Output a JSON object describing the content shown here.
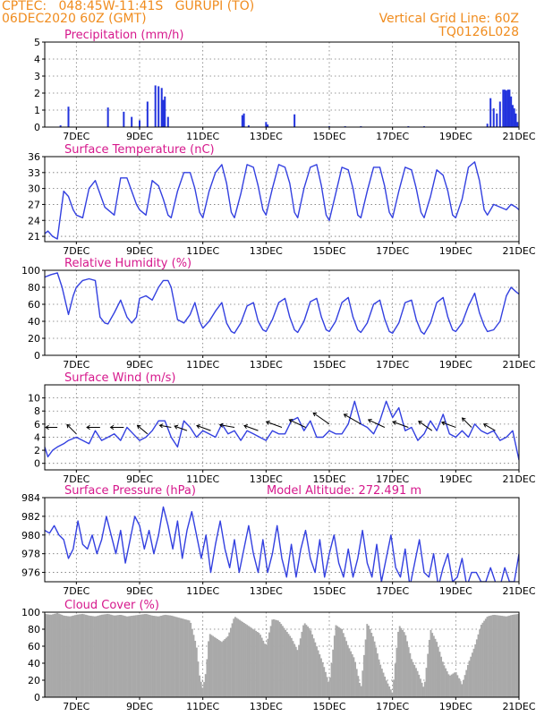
{
  "header": {
    "line1": "CPTEC:   048:45W-11:41S   GURUPI (TO)",
    "line2": "06DEC2020 60Z (GMT)",
    "grid_note": "Vertical Grid Line: 60Z",
    "code": "TQ0126L028"
  },
  "colors": {
    "header": "#f08c1e",
    "title": "#d6188c",
    "line": "#3340e0",
    "bar": "#2233dd",
    "cloud": "#a9a9a9",
    "arrow": "#000000"
  },
  "x_axis": {
    "start_day": 6.0,
    "end_day": 21.0,
    "tick_days": [
      7,
      9,
      11,
      13,
      15,
      17,
      19,
      21
    ],
    "tick_labels": [
      "7DEC",
      "9DEC",
      "11DEC",
      "13DEC",
      "15DEC",
      "17DEC",
      "19DEC",
      "21DEC"
    ]
  },
  "chart_data": [
    {
      "id": "precip",
      "type": "bar",
      "title": "Precipitation (mm/h)",
      "ylim": [
        0,
        5
      ],
      "yticks": [
        0,
        1,
        2,
        3,
        4,
        5
      ],
      "x": [
        6.5,
        6.75,
        8.0,
        8.5,
        8.75,
        9.0,
        9.25,
        9.5,
        9.6,
        9.7,
        9.75,
        9.8,
        9.9,
        12.25,
        12.3,
        12.45,
        13.0,
        13.05,
        13.9,
        15.0,
        15.5,
        16.0,
        17.5,
        18.0,
        20.0,
        20.1,
        20.2,
        20.3,
        20.4,
        20.5,
        20.55,
        20.6,
        20.65,
        20.7,
        20.75,
        20.8,
        20.85,
        20.9,
        20.95
      ],
      "values": [
        0.1,
        1.2,
        1.15,
        0.9,
        0.6,
        0.4,
        1.5,
        2.45,
        2.4,
        2.3,
        1.6,
        1.8,
        0.6,
        0.7,
        0.8,
        0.1,
        0.3,
        0.15,
        0.75,
        0.05,
        0.05,
        0.05,
        0.05,
        0.05,
        0.2,
        1.7,
        1.1,
        0.8,
        1.5,
        2.2,
        2.2,
        2.15,
        2.2,
        2.2,
        1.8,
        1.3,
        1.1,
        0.8,
        0.3
      ]
    },
    {
      "id": "temp",
      "type": "line",
      "title": "Surface Temperature (nC)",
      "ylim": [
        20,
        36
      ],
      "yticks": [
        21,
        24,
        27,
        30,
        33,
        36
      ],
      "x": [
        6.0,
        6.1,
        6.25,
        6.4,
        6.6,
        6.75,
        6.9,
        7.0,
        7.2,
        7.4,
        7.6,
        7.75,
        7.9,
        8.0,
        8.2,
        8.4,
        8.6,
        8.75,
        8.9,
        9.0,
        9.2,
        9.4,
        9.6,
        9.75,
        9.9,
        10.0,
        10.2,
        10.4,
        10.6,
        10.75,
        10.9,
        11.0,
        11.2,
        11.4,
        11.6,
        11.75,
        11.9,
        12.0,
        12.2,
        12.4,
        12.6,
        12.75,
        12.9,
        13.0,
        13.2,
        13.4,
        13.6,
        13.75,
        13.9,
        14.0,
        14.2,
        14.4,
        14.6,
        14.75,
        14.9,
        15.0,
        15.2,
        15.4,
        15.6,
        15.75,
        15.9,
        16.0,
        16.2,
        16.4,
        16.6,
        16.75,
        16.9,
        17.0,
        17.2,
        17.4,
        17.6,
        17.75,
        17.9,
        18.0,
        18.2,
        18.4,
        18.6,
        18.75,
        18.9,
        19.0,
        19.2,
        19.4,
        19.6,
        19.75,
        19.9,
        20.0,
        20.2,
        20.4,
        20.6,
        20.75,
        20.9,
        21.0
      ],
      "values": [
        21.5,
        22.0,
        21.0,
        20.5,
        29.5,
        28.5,
        26.0,
        25.0,
        24.5,
        30.0,
        31.5,
        29.0,
        26.5,
        26.0,
        25.0,
        32.0,
        32.0,
        29.5,
        27.0,
        26.0,
        25.0,
        31.5,
        30.5,
        28.0,
        25.0,
        24.5,
        29.5,
        33.0,
        33.0,
        30.0,
        25.5,
        24.5,
        29.5,
        33.0,
        34.5,
        31.0,
        25.5,
        24.5,
        29.0,
        34.5,
        34.0,
        30.5,
        26.0,
        25.0,
        30.0,
        34.5,
        34.0,
        31.0,
        25.5,
        24.5,
        30.0,
        34.0,
        34.5,
        30.5,
        25.0,
        24.0,
        29.0,
        34.0,
        33.5,
        30.0,
        25.0,
        24.5,
        29.5,
        34.0,
        34.0,
        30.5,
        25.5,
        24.5,
        29.5,
        34.0,
        33.5,
        30.0,
        25.5,
        24.5,
        28.5,
        33.5,
        32.5,
        29.5,
        25.0,
        24.5,
        28.0,
        34.0,
        35.0,
        31.5,
        26.0,
        25.0,
        27.0,
        26.5,
        26.0,
        27.0,
        26.5,
        26.0
      ]
    },
    {
      "id": "rh",
      "type": "line",
      "title": "Relative Humidity (%)",
      "ylim": [
        0,
        100
      ],
      "yticks": [
        0,
        20,
        40,
        60,
        80,
        100
      ],
      "x": [
        6.0,
        6.2,
        6.4,
        6.55,
        6.75,
        6.9,
        7.0,
        7.2,
        7.4,
        7.6,
        7.75,
        7.9,
        8.0,
        8.2,
        8.4,
        8.6,
        8.75,
        8.9,
        9.0,
        9.2,
        9.4,
        9.6,
        9.75,
        9.9,
        10.0,
        10.2,
        10.4,
        10.6,
        10.75,
        10.9,
        11.0,
        11.2,
        11.4,
        11.6,
        11.75,
        11.9,
        12.0,
        12.2,
        12.4,
        12.6,
        12.75,
        12.9,
        13.0,
        13.2,
        13.4,
        13.6,
        13.75,
        13.9,
        14.0,
        14.2,
        14.4,
        14.6,
        14.75,
        14.9,
        15.0,
        15.2,
        15.4,
        15.6,
        15.75,
        15.9,
        16.0,
        16.2,
        16.4,
        16.6,
        16.75,
        16.9,
        17.0,
        17.2,
        17.4,
        17.6,
        17.75,
        17.9,
        18.0,
        18.2,
        18.4,
        18.6,
        18.75,
        18.9,
        19.0,
        19.2,
        19.4,
        19.6,
        19.75,
        19.9,
        20.0,
        20.2,
        20.4,
        20.6,
        20.75,
        20.9,
        21.0
      ],
      "values": [
        92,
        95,
        97,
        80,
        48,
        70,
        80,
        88,
        90,
        88,
        45,
        38,
        37,
        50,
        65,
        45,
        38,
        45,
        67,
        70,
        65,
        80,
        88,
        88,
        80,
        42,
        38,
        48,
        62,
        40,
        32,
        40,
        52,
        62,
        38,
        28,
        26,
        38,
        58,
        62,
        40,
        30,
        28,
        42,
        62,
        67,
        45,
        30,
        27,
        40,
        63,
        67,
        45,
        30,
        28,
        40,
        62,
        68,
        45,
        30,
        27,
        38,
        60,
        65,
        43,
        28,
        26,
        38,
        62,
        65,
        42,
        28,
        25,
        38,
        62,
        68,
        45,
        30,
        28,
        38,
        58,
        73,
        50,
        35,
        28,
        30,
        40,
        70,
        80,
        75,
        72
      ]
    },
    {
      "id": "wind",
      "type": "line",
      "title": "Surface Wind (m/s)",
      "ylim": [
        -1,
        12
      ],
      "yticks": [
        0,
        2,
        4,
        6,
        8,
        10
      ],
      "x": [
        6.0,
        6.1,
        6.25,
        6.4,
        6.6,
        6.75,
        7.0,
        7.2,
        7.4,
        7.6,
        7.8,
        8.0,
        8.2,
        8.4,
        8.6,
        8.8,
        9.0,
        9.2,
        9.4,
        9.6,
        9.8,
        10.0,
        10.2,
        10.4,
        10.6,
        10.8,
        11.0,
        11.2,
        11.4,
        11.6,
        11.8,
        12.0,
        12.2,
        12.4,
        12.6,
        12.8,
        13.0,
        13.2,
        13.4,
        13.6,
        13.8,
        14.0,
        14.2,
        14.4,
        14.6,
        14.8,
        15.0,
        15.2,
        15.4,
        15.6,
        15.8,
        16.0,
        16.2,
        16.4,
        16.6,
        16.8,
        17.0,
        17.2,
        17.4,
        17.6,
        17.8,
        18.0,
        18.2,
        18.4,
        18.6,
        18.8,
        19.0,
        19.2,
        19.4,
        19.6,
        19.8,
        20.0,
        20.2,
        20.4,
        20.6,
        20.8,
        21.0
      ],
      "values": [
        2.5,
        1.0,
        2.0,
        2.5,
        3.0,
        3.5,
        4.0,
        3.5,
        3.0,
        5.0,
        3.5,
        4.0,
        4.5,
        3.5,
        5.5,
        4.5,
        3.5,
        4.0,
        5.0,
        6.5,
        6.5,
        4.0,
        2.5,
        6.5,
        5.5,
        4.0,
        5.0,
        4.5,
        4.0,
        6.0,
        4.5,
        5.0,
        3.5,
        5.0,
        4.5,
        4.0,
        3.5,
        5.0,
        4.5,
        4.5,
        6.5,
        7.0,
        5.0,
        6.5,
        4.0,
        4.0,
        5.0,
        4.5,
        4.5,
        6.0,
        9.5,
        6.0,
        5.5,
        4.5,
        6.5,
        9.5,
        7.0,
        8.5,
        5.0,
        5.5,
        3.5,
        4.5,
        6.5,
        5.0,
        7.5,
        4.5,
        4.0,
        5.0,
        4.0,
        6.0,
        5.0,
        4.5,
        5.0,
        3.5,
        4.0,
        5.0,
        0.5
      ],
      "arrows": [
        {
          "x": 6.4,
          "y": 5.5,
          "dir": 180,
          "speed": 2.0
        },
        {
          "x": 7.0,
          "y": 4.5,
          "dir": 225,
          "speed": 2.5
        },
        {
          "x": 7.75,
          "y": 5.5,
          "dir": 180,
          "speed": 2.5
        },
        {
          "x": 8.5,
          "y": 5.5,
          "dir": 180,
          "speed": 2.5
        },
        {
          "x": 9.25,
          "y": 4.5,
          "dir": 220,
          "speed": 2.5
        },
        {
          "x": 10.0,
          "y": 5.5,
          "dir": 190,
          "speed": 2.0
        },
        {
          "x": 10.5,
          "y": 5.0,
          "dir": 200,
          "speed": 2.5
        },
        {
          "x": 11.25,
          "y": 5.0,
          "dir": 200,
          "speed": 3.0
        },
        {
          "x": 12.0,
          "y": 5.5,
          "dir": 190,
          "speed": 3.0
        },
        {
          "x": 12.75,
          "y": 5.0,
          "dir": 200,
          "speed": 3.0
        },
        {
          "x": 13.5,
          "y": 5.5,
          "dir": 200,
          "speed": 3.5
        },
        {
          "x": 14.25,
          "y": 5.5,
          "dir": 205,
          "speed": 4.0
        },
        {
          "x": 15.0,
          "y": 6.0,
          "dir": 215,
          "speed": 4.5
        },
        {
          "x": 16.0,
          "y": 6.0,
          "dir": 210,
          "speed": 4.5
        },
        {
          "x": 16.75,
          "y": 5.5,
          "dir": 205,
          "speed": 4.0
        },
        {
          "x": 17.5,
          "y": 5.5,
          "dir": 200,
          "speed": 3.5
        },
        {
          "x": 18.25,
          "y": 5.0,
          "dir": 215,
          "speed": 3.5
        },
        {
          "x": 19.0,
          "y": 5.5,
          "dir": 200,
          "speed": 3.0
        },
        {
          "x": 19.5,
          "y": 5.5,
          "dir": 225,
          "speed": 2.5
        },
        {
          "x": 20.25,
          "y": 5.0,
          "dir": 210,
          "speed": 2.5
        }
      ]
    },
    {
      "id": "pressure",
      "type": "line",
      "title": "Surface Pressure (hPa)",
      "subtitle": "Model Altitude: 272.491  m",
      "ylim": [
        975,
        984
      ],
      "yticks": [
        976,
        978,
        980,
        982,
        984
      ],
      "x": [
        6.0,
        6.15,
        6.3,
        6.45,
        6.6,
        6.75,
        6.9,
        7.05,
        7.2,
        7.35,
        7.5,
        7.65,
        7.8,
        7.95,
        8.1,
        8.25,
        8.4,
        8.55,
        8.7,
        8.85,
        9.0,
        9.15,
        9.3,
        9.45,
        9.6,
        9.75,
        9.9,
        10.05,
        10.2,
        10.35,
        10.5,
        10.65,
        10.8,
        10.95,
        11.1,
        11.25,
        11.4,
        11.55,
        11.7,
        11.85,
        12.0,
        12.15,
        12.3,
        12.45,
        12.6,
        12.75,
        12.9,
        13.05,
        13.2,
        13.35,
        13.5,
        13.65,
        13.8,
        13.95,
        14.1,
        14.25,
        14.4,
        14.55,
        14.7,
        14.85,
        15.0,
        15.15,
        15.3,
        15.45,
        15.6,
        15.75,
        15.9,
        16.05,
        16.2,
        16.35,
        16.5,
        16.65,
        16.8,
        16.95,
        17.1,
        17.25,
        17.4,
        17.55,
        17.7,
        17.85,
        18.0,
        18.15,
        18.3,
        18.45,
        18.6,
        18.75,
        18.9,
        19.05,
        19.2,
        19.35,
        19.5,
        19.65,
        19.8,
        19.95,
        20.1,
        20.25,
        20.4,
        20.55,
        20.7,
        20.85,
        21.0
      ],
      "values": [
        980.5,
        980.2,
        981.0,
        980.0,
        979.5,
        977.5,
        978.5,
        981.5,
        979.0,
        978.5,
        980.0,
        978.0,
        979.5,
        982.0,
        980.0,
        978.0,
        980.5,
        977.0,
        979.5,
        982.0,
        981.0,
        978.5,
        980.5,
        978.0,
        980.0,
        983.0,
        981.0,
        978.5,
        981.5,
        977.5,
        980.5,
        982.5,
        980.0,
        977.5,
        980.0,
        976.0,
        979.0,
        981.5,
        978.5,
        976.5,
        979.5,
        976.0,
        978.5,
        981.0,
        978.0,
        976.0,
        979.5,
        976.0,
        978.0,
        981.0,
        977.5,
        975.5,
        979.0,
        975.5,
        978.5,
        980.5,
        977.5,
        976.0,
        979.5,
        975.5,
        978.0,
        980.0,
        977.0,
        975.5,
        978.5,
        975.5,
        977.5,
        980.5,
        977.0,
        975.5,
        979.0,
        975.0,
        977.5,
        980.0,
        976.5,
        975.5,
        978.5,
        974.5,
        977.0,
        979.5,
        976.0,
        975.5,
        978.0,
        974.5,
        976.5,
        978.0,
        975.0,
        975.5,
        977.5,
        974.5,
        976.0,
        976.0,
        975.0,
        975.0,
        976.5,
        975.0,
        974.5,
        976.5,
        975.0,
        975.0,
        978.0
      ]
    },
    {
      "id": "cloud",
      "type": "area",
      "title": "Cloud Cover (%)",
      "ylim": [
        0,
        100
      ],
      "yticks": [
        0,
        20,
        40,
        60,
        80,
        100
      ],
      "x": [
        6.0,
        6.2,
        6.4,
        6.6,
        6.8,
        7.0,
        7.2,
        7.4,
        7.6,
        7.8,
        8.0,
        8.2,
        8.4,
        8.6,
        8.8,
        9.0,
        9.2,
        9.4,
        9.6,
        9.8,
        10.0,
        10.2,
        10.4,
        10.6,
        10.8,
        10.9,
        11.0,
        11.1,
        11.2,
        11.4,
        11.6,
        11.8,
        12.0,
        12.2,
        12.4,
        12.6,
        12.8,
        13.0,
        13.2,
        13.4,
        13.6,
        13.8,
        14.0,
        14.2,
        14.4,
        14.6,
        14.8,
        15.0,
        15.2,
        15.4,
        15.6,
        15.8,
        16.0,
        16.2,
        16.4,
        16.6,
        16.8,
        17.0,
        17.2,
        17.4,
        17.6,
        17.8,
        18.0,
        18.2,
        18.4,
        18.6,
        18.8,
        19.0,
        19.2,
        19.4,
        19.6,
        19.8,
        20.0,
        20.2,
        20.4,
        20.6,
        20.8,
        21.0
      ],
      "values": [
        98,
        97,
        99,
        96,
        95,
        97,
        98,
        96,
        95,
        97,
        98,
        96,
        97,
        95,
        96,
        97,
        98,
        96,
        95,
        97,
        96,
        94,
        92,
        90,
        60,
        25,
        10,
        30,
        75,
        70,
        65,
        72,
        95,
        90,
        85,
        80,
        75,
        60,
        92,
        90,
        80,
        70,
        55,
        88,
        80,
        60,
        40,
        15,
        85,
        80,
        60,
        45,
        10,
        88,
        70,
        40,
        20,
        5,
        85,
        75,
        45,
        30,
        10,
        80,
        65,
        40,
        25,
        30,
        15,
        40,
        60,
        85,
        95,
        97,
        96,
        95,
        97,
        98
      ]
    }
  ]
}
